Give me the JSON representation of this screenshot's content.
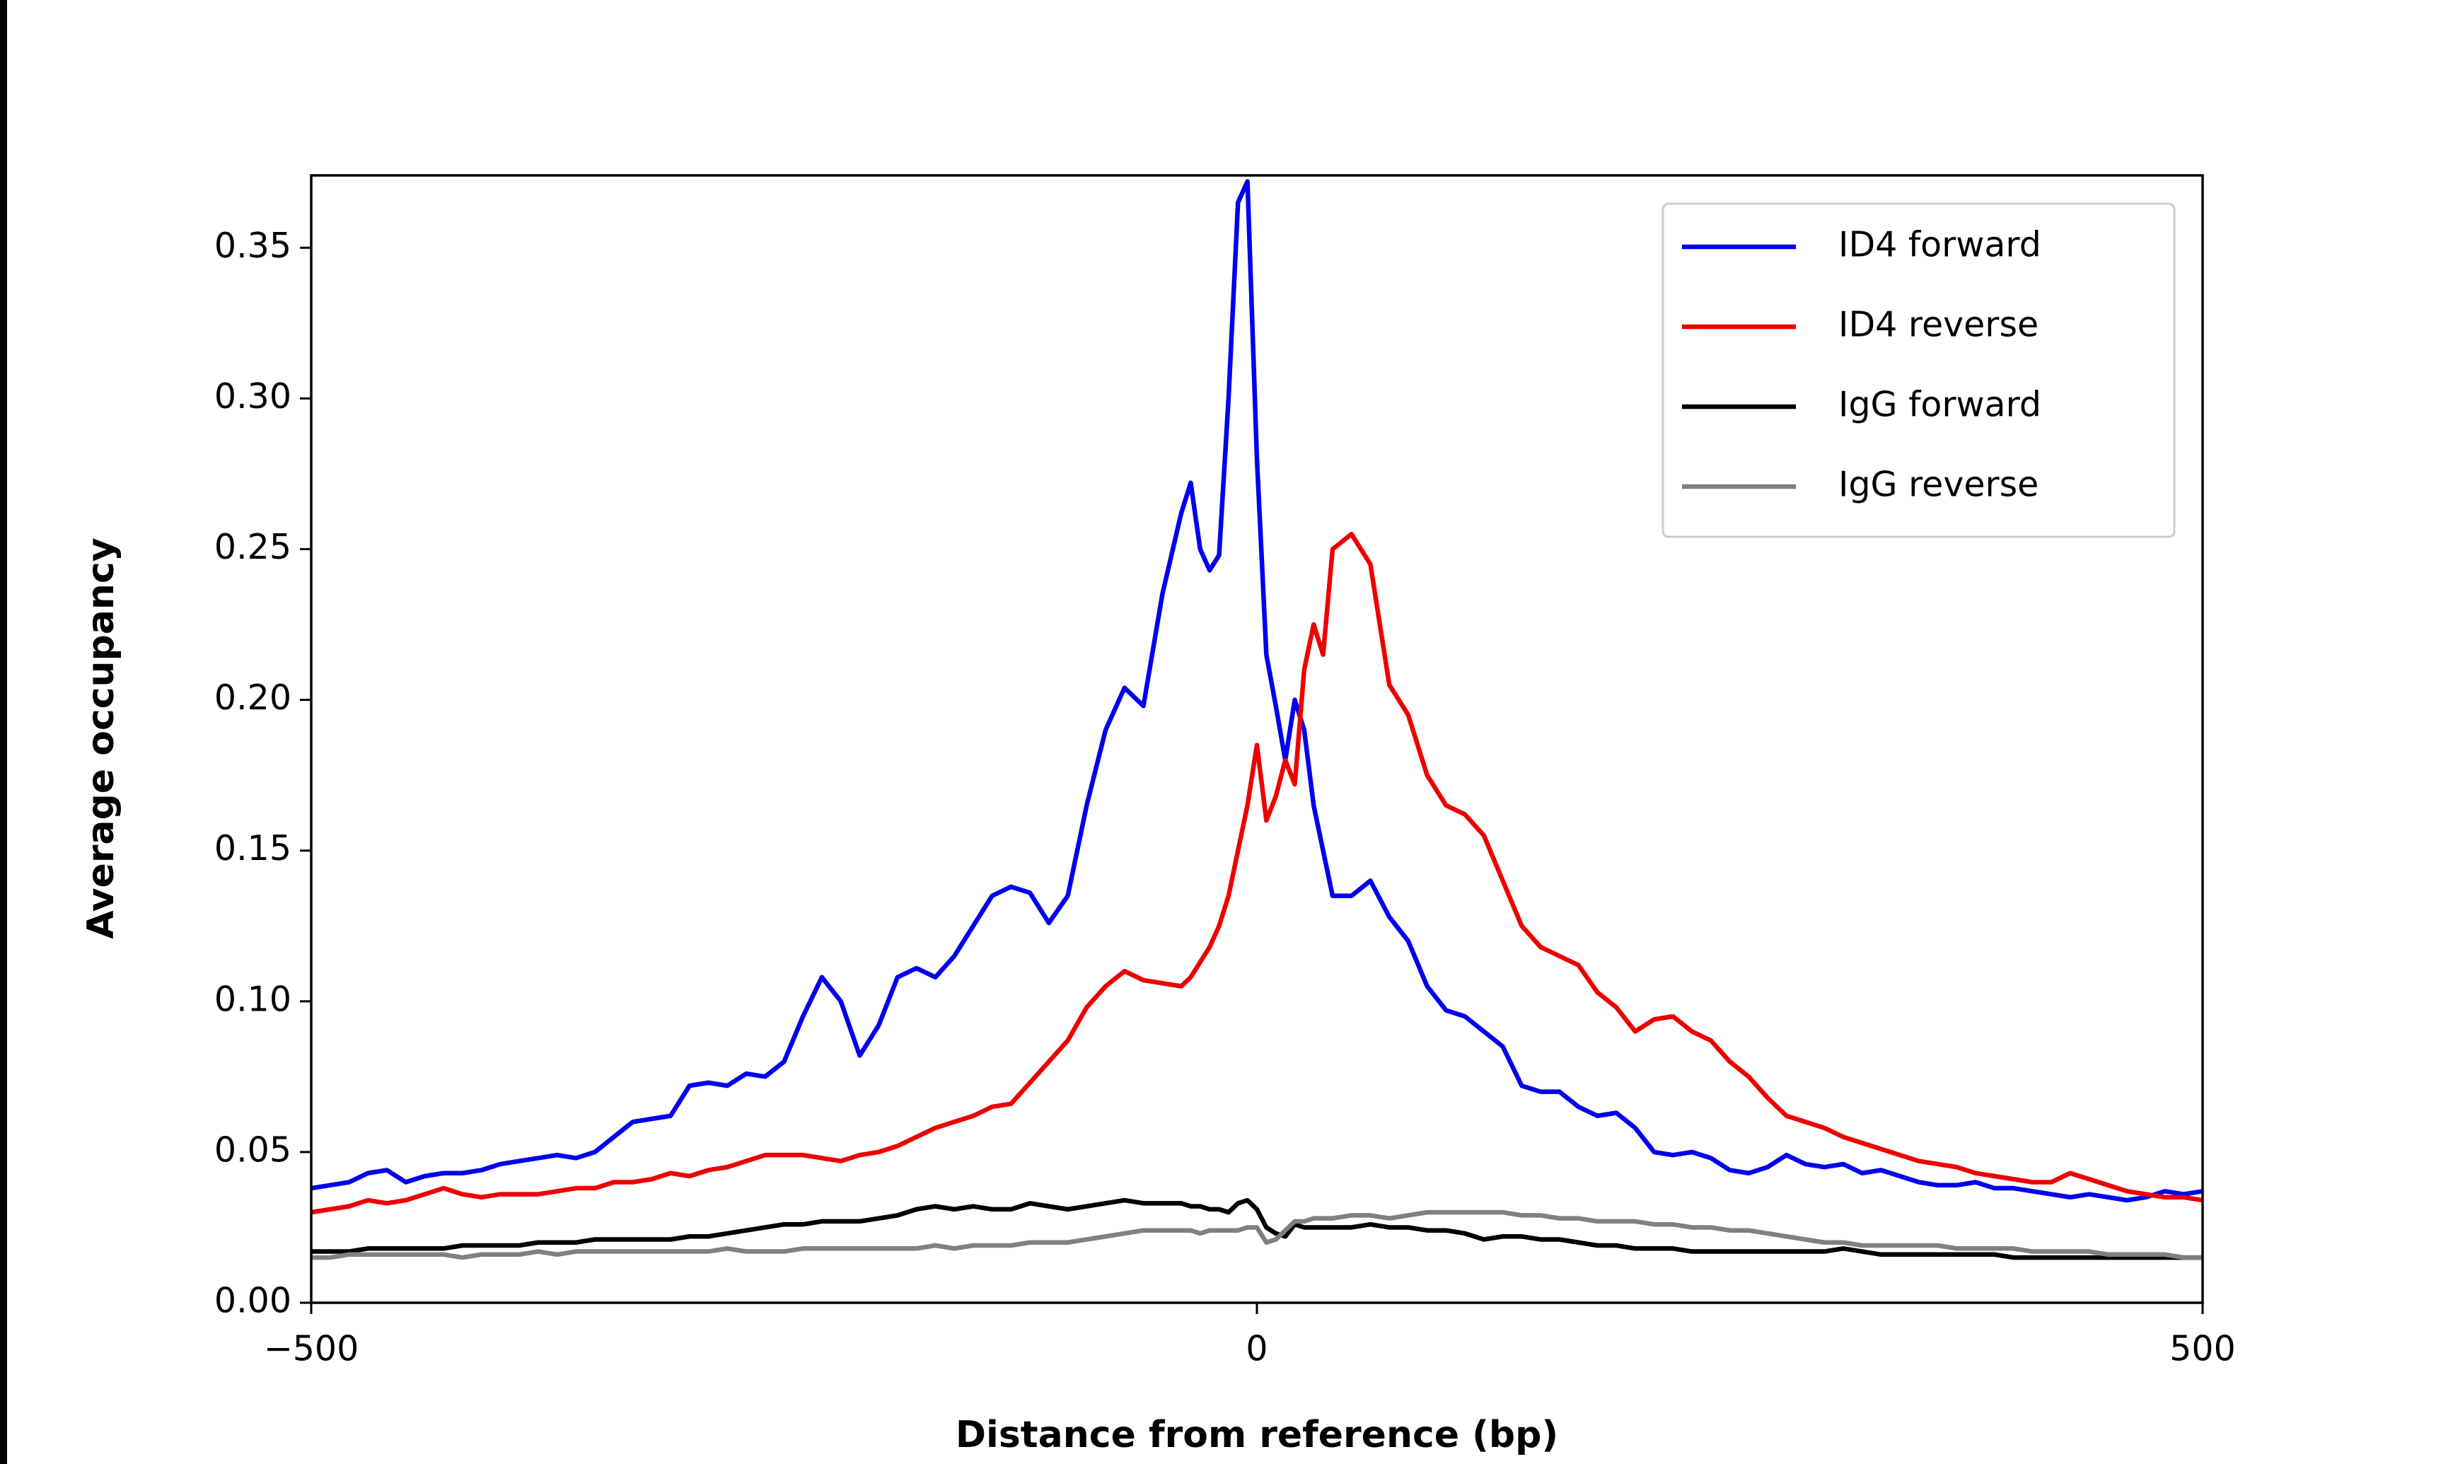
{
  "chart_data": {
    "type": "line",
    "xlabel": "Distance from reference (bp)",
    "ylabel": "Average occupancy",
    "x": [
      -500,
      -490,
      -480,
      -470,
      -460,
      -450,
      -440,
      -430,
      -420,
      -410,
      -400,
      -390,
      -380,
      -370,
      -360,
      -350,
      -340,
      -330,
      -320,
      -310,
      -300,
      -290,
      -280,
      -270,
      -260,
      -250,
      -240,
      -230,
      -220,
      -210,
      -200,
      -190,
      -180,
      -170,
      -160,
      -150,
      -140,
      -130,
      -120,
      -110,
      -100,
      -90,
      -80,
      -70,
      -60,
      -50,
      -40,
      -35,
      -30,
      -25,
      -20,
      -15,
      -10,
      -5,
      0,
      5,
      10,
      15,
      20,
      25,
      30,
      35,
      40,
      50,
      60,
      70,
      80,
      90,
      100,
      110,
      120,
      130,
      140,
      150,
      160,
      170,
      180,
      190,
      200,
      210,
      220,
      230,
      240,
      250,
      260,
      270,
      280,
      290,
      300,
      310,
      320,
      330,
      340,
      350,
      360,
      370,
      380,
      390,
      400,
      410,
      420,
      430,
      440,
      450,
      460,
      470,
      480,
      490,
      500
    ],
    "series": [
      {
        "name": "ID4 forward",
        "color": "#0000ee",
        "values": [
          0.038,
          0.039,
          0.04,
          0.043,
          0.044,
          0.04,
          0.042,
          0.043,
          0.043,
          0.044,
          0.046,
          0.047,
          0.048,
          0.049,
          0.048,
          0.05,
          0.055,
          0.06,
          0.061,
          0.062,
          0.072,
          0.073,
          0.072,
          0.076,
          0.075,
          0.08,
          0.095,
          0.108,
          0.1,
          0.082,
          0.092,
          0.108,
          0.111,
          0.108,
          0.115,
          0.125,
          0.135,
          0.138,
          0.136,
          0.126,
          0.135,
          0.165,
          0.19,
          0.204,
          0.198,
          0.235,
          0.262,
          0.272,
          0.25,
          0.243,
          0.248,
          0.3,
          0.365,
          0.372,
          0.28,
          0.215,
          0.198,
          0.18,
          0.2,
          0.19,
          0.165,
          0.15,
          0.135,
          0.135,
          0.14,
          0.128,
          0.12,
          0.105,
          0.097,
          0.095,
          0.09,
          0.085,
          0.072,
          0.07,
          0.07,
          0.065,
          0.062,
          0.063,
          0.058,
          0.05,
          0.049,
          0.05,
          0.048,
          0.044,
          0.043,
          0.045,
          0.049,
          0.046,
          0.045,
          0.046,
          0.043,
          0.044,
          0.042,
          0.04,
          0.039,
          0.039,
          0.04,
          0.038,
          0.038,
          0.037,
          0.036,
          0.035,
          0.036,
          0.035,
          0.034,
          0.035,
          0.037,
          0.036,
          0.037
        ]
      },
      {
        "name": "ID4 reverse",
        "color": "#ee0000",
        "values": [
          0.03,
          0.031,
          0.032,
          0.034,
          0.033,
          0.034,
          0.036,
          0.038,
          0.036,
          0.035,
          0.036,
          0.036,
          0.036,
          0.037,
          0.038,
          0.038,
          0.04,
          0.04,
          0.041,
          0.043,
          0.042,
          0.044,
          0.045,
          0.047,
          0.049,
          0.049,
          0.049,
          0.048,
          0.047,
          0.049,
          0.05,
          0.052,
          0.055,
          0.058,
          0.06,
          0.062,
          0.065,
          0.066,
          0.073,
          0.08,
          0.087,
          0.098,
          0.105,
          0.11,
          0.107,
          0.106,
          0.105,
          0.108,
          0.113,
          0.118,
          0.125,
          0.135,
          0.15,
          0.165,
          0.185,
          0.16,
          0.168,
          0.18,
          0.172,
          0.21,
          0.225,
          0.215,
          0.25,
          0.255,
          0.245,
          0.205,
          0.195,
          0.175,
          0.165,
          0.162,
          0.155,
          0.14,
          0.125,
          0.118,
          0.115,
          0.112,
          0.103,
          0.098,
          0.09,
          0.094,
          0.095,
          0.09,
          0.087,
          0.08,
          0.075,
          0.068,
          0.062,
          0.06,
          0.058,
          0.055,
          0.053,
          0.051,
          0.049,
          0.047,
          0.046,
          0.045,
          0.043,
          0.042,
          0.041,
          0.04,
          0.04,
          0.043,
          0.041,
          0.039,
          0.037,
          0.036,
          0.035,
          0.035,
          0.034
        ]
      },
      {
        "name": "IgG forward",
        "color": "#000000",
        "values": [
          0.017,
          0.017,
          0.017,
          0.018,
          0.018,
          0.018,
          0.018,
          0.018,
          0.019,
          0.019,
          0.019,
          0.019,
          0.02,
          0.02,
          0.02,
          0.021,
          0.021,
          0.021,
          0.021,
          0.021,
          0.022,
          0.022,
          0.023,
          0.024,
          0.025,
          0.026,
          0.026,
          0.027,
          0.027,
          0.027,
          0.028,
          0.029,
          0.031,
          0.032,
          0.031,
          0.032,
          0.031,
          0.031,
          0.033,
          0.032,
          0.031,
          0.032,
          0.033,
          0.034,
          0.033,
          0.033,
          0.033,
          0.032,
          0.032,
          0.031,
          0.031,
          0.03,
          0.033,
          0.034,
          0.031,
          0.025,
          0.023,
          0.022,
          0.026,
          0.025,
          0.025,
          0.025,
          0.025,
          0.025,
          0.026,
          0.025,
          0.025,
          0.024,
          0.024,
          0.023,
          0.021,
          0.022,
          0.022,
          0.021,
          0.021,
          0.02,
          0.019,
          0.019,
          0.018,
          0.018,
          0.018,
          0.017,
          0.017,
          0.017,
          0.017,
          0.017,
          0.017,
          0.017,
          0.017,
          0.018,
          0.017,
          0.016,
          0.016,
          0.016,
          0.016,
          0.016,
          0.016,
          0.016,
          0.015,
          0.015,
          0.015,
          0.015,
          0.015,
          0.015,
          0.015,
          0.015,
          0.015,
          0.015,
          0.015
        ]
      },
      {
        "name": "IgG reverse",
        "color": "#808080",
        "values": [
          0.015,
          0.015,
          0.016,
          0.016,
          0.016,
          0.016,
          0.016,
          0.016,
          0.015,
          0.016,
          0.016,
          0.016,
          0.017,
          0.016,
          0.017,
          0.017,
          0.017,
          0.017,
          0.017,
          0.017,
          0.017,
          0.017,
          0.018,
          0.017,
          0.017,
          0.017,
          0.018,
          0.018,
          0.018,
          0.018,
          0.018,
          0.018,
          0.018,
          0.019,
          0.018,
          0.019,
          0.019,
          0.019,
          0.02,
          0.02,
          0.02,
          0.021,
          0.022,
          0.023,
          0.024,
          0.024,
          0.024,
          0.024,
          0.023,
          0.024,
          0.024,
          0.024,
          0.024,
          0.025,
          0.025,
          0.02,
          0.021,
          0.024,
          0.027,
          0.027,
          0.028,
          0.028,
          0.028,
          0.029,
          0.029,
          0.028,
          0.029,
          0.03,
          0.03,
          0.03,
          0.03,
          0.03,
          0.029,
          0.029,
          0.028,
          0.028,
          0.027,
          0.027,
          0.027,
          0.026,
          0.026,
          0.025,
          0.025,
          0.024,
          0.024,
          0.023,
          0.022,
          0.021,
          0.02,
          0.02,
          0.019,
          0.019,
          0.019,
          0.019,
          0.019,
          0.018,
          0.018,
          0.018,
          0.018,
          0.017,
          0.017,
          0.017,
          0.017,
          0.016,
          0.016,
          0.016,
          0.016,
          0.015,
          0.015
        ]
      }
    ],
    "xlim": [
      -500,
      500
    ],
    "ylim": [
      0,
      0.374
    ],
    "xticks": [
      {
        "value": -500,
        "label": "−500"
      },
      0,
      500
    ],
    "yticks": [
      {
        "value": 0,
        "label": "0.00"
      },
      {
        "value": 0.05,
        "label": "0.05"
      },
      {
        "value": 0.1,
        "label": "0.10"
      },
      {
        "value": 0.15,
        "label": "0.15"
      },
      {
        "value": 0.2,
        "label": "0.20"
      },
      {
        "value": 0.25,
        "label": "0.25"
      },
      {
        "value": 0.3,
        "label": "0.30"
      },
      {
        "value": 0.35,
        "label": "0.35"
      }
    ],
    "legend": "upper right",
    "grid": false
  }
}
